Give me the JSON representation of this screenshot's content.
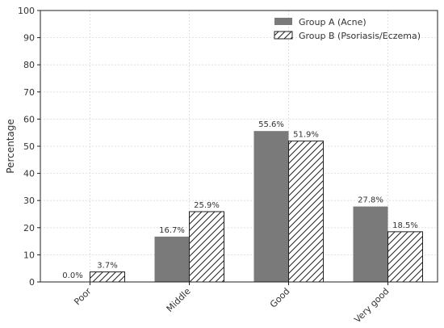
{
  "chart_data": {
    "type": "bar",
    "title": "",
    "xlabel": "",
    "ylabel": "Percentage",
    "ylim": [
      0,
      100
    ],
    "yticks": [
      0,
      10,
      20,
      30,
      40,
      50,
      60,
      70,
      80,
      90,
      100
    ],
    "grid": true,
    "legend_position": "top-right",
    "categories": [
      "Poor",
      "Middle",
      "Good",
      "Very good"
    ],
    "series": [
      {
        "name": "Group A (Acne)",
        "values": [
          0.0,
          16.7,
          55.6,
          27.8
        ],
        "labels": [
          "0.0%",
          "16.7%",
          "55.6%",
          "27.8%"
        ],
        "color": "#7a7a7a",
        "pattern": "solid"
      },
      {
        "name": "Group B (Psoriasis/Eczema)",
        "values": [
          3.7,
          25.9,
          51.9,
          18.5
        ],
        "labels": [
          "3.7%",
          "25.9%",
          "51.9%",
          "18.5%"
        ],
        "color": "#ffffff",
        "pattern": "hatch"
      }
    ]
  }
}
